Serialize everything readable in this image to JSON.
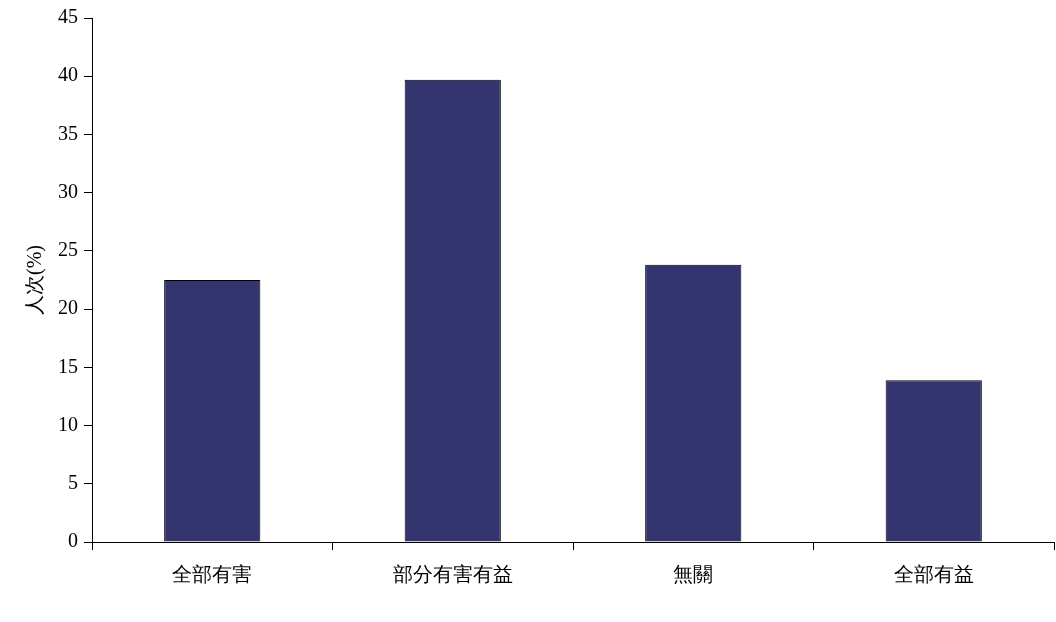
{
  "chart_data": {
    "type": "bar",
    "ylabel": "人次(%)",
    "categories": [
      "全部有害",
      "部分有害有益",
      "無關",
      "全部有益"
    ],
    "values": [
      22.5,
      39.7,
      23.8,
      13.9
    ],
    "color": "#34346e",
    "ylim": [
      0,
      45
    ],
    "yticks": [
      0,
      5,
      10,
      15,
      20,
      25,
      30,
      35,
      40,
      45
    ],
    "grid": false,
    "legend": false
  }
}
